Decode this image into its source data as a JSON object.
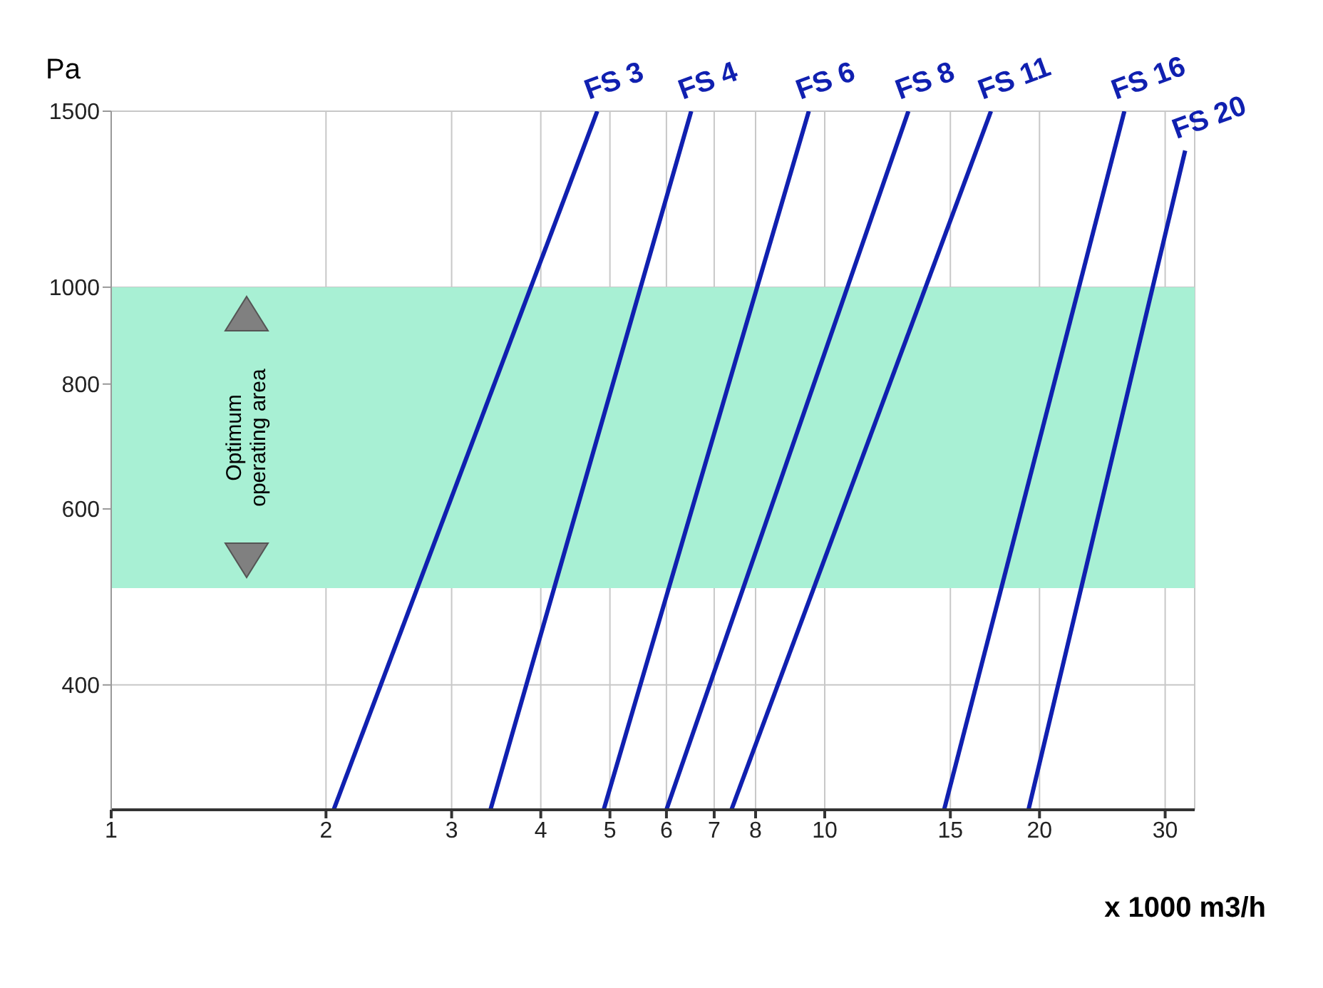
{
  "chart_data": {
    "type": "line",
    "xlabel": "x 1000 m3/h",
    "ylabel": "Pa",
    "log": "xy",
    "xlim": [
      1,
      33
    ],
    "xticks": [
      1,
      2,
      3,
      4,
      5,
      6,
      7,
      8,
      10,
      15,
      20,
      30
    ],
    "ylim": [
      300,
      1500
    ],
    "yticks": [
      400,
      600,
      800,
      1000,
      1500
    ],
    "grid": true,
    "marker": "none",
    "line_style": "solid",
    "bands": [
      {
        "axis": "y",
        "from": 500,
        "to": 1000,
        "label": "Optimum operating area",
        "color": "#a8f0d4"
      }
    ],
    "series": [
      {
        "name": "FS 3",
        "color": "#1020b0",
        "x": [
          2.05,
          4.8
        ],
        "values": [
          300,
          1500
        ]
      },
      {
        "name": "FS 4",
        "color": "#1020b0",
        "x": [
          3.4,
          6.5
        ],
        "values": [
          300,
          1500
        ]
      },
      {
        "name": "FS 6",
        "color": "#1020b0",
        "x": [
          4.9,
          9.5
        ],
        "values": [
          300,
          1500
        ]
      },
      {
        "name": "FS 8",
        "color": "#1020b0",
        "x": [
          6.0,
          13.1
        ],
        "values": [
          300,
          1500
        ]
      },
      {
        "name": "FS 11",
        "color": "#1020b0",
        "x": [
          7.4,
          17.1
        ],
        "values": [
          300,
          1500
        ]
      },
      {
        "name": "FS 16",
        "color": "#1020b0",
        "x": [
          14.7,
          26.3
        ],
        "values": [
          300,
          1500
        ]
      },
      {
        "name": "FS 20",
        "color": "#1020b0",
        "x": [
          19.3,
          32
        ],
        "values": [
          300,
          1370
        ]
      }
    ]
  }
}
